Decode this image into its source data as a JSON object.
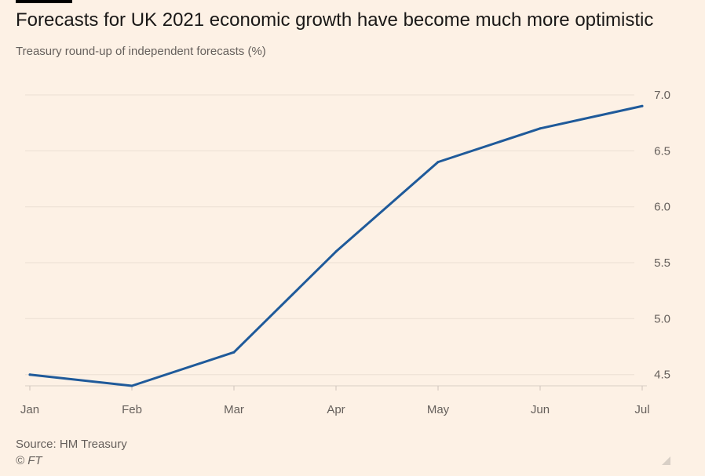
{
  "title": "Forecasts for UK 2021 economic growth have become much more optimistic",
  "subtitle": "Treasury round-up of independent forecasts (%)",
  "source": "Source: HM Treasury",
  "copyright": "© FT",
  "colors": {
    "background": "#fdf1e5",
    "line": "#1f5a9a",
    "grid": "#ece0d4",
    "axis_text": "#66605c"
  },
  "chart_data": {
    "type": "line",
    "categories": [
      "Jan",
      "Feb",
      "Mar",
      "Apr",
      "May",
      "Jun",
      "Jul"
    ],
    "series": [
      {
        "values": [
          4.5,
          4.4,
          4.7,
          5.6,
          6.4,
          6.7,
          6.9
        ]
      }
    ],
    "ylim": [
      4.4,
      7.0
    ],
    "yticks": [
      "4.5",
      "5.0",
      "5.5",
      "6.0",
      "6.5",
      "7.0"
    ],
    "y_axis_position": "right",
    "grid": true,
    "legend": "none"
  }
}
